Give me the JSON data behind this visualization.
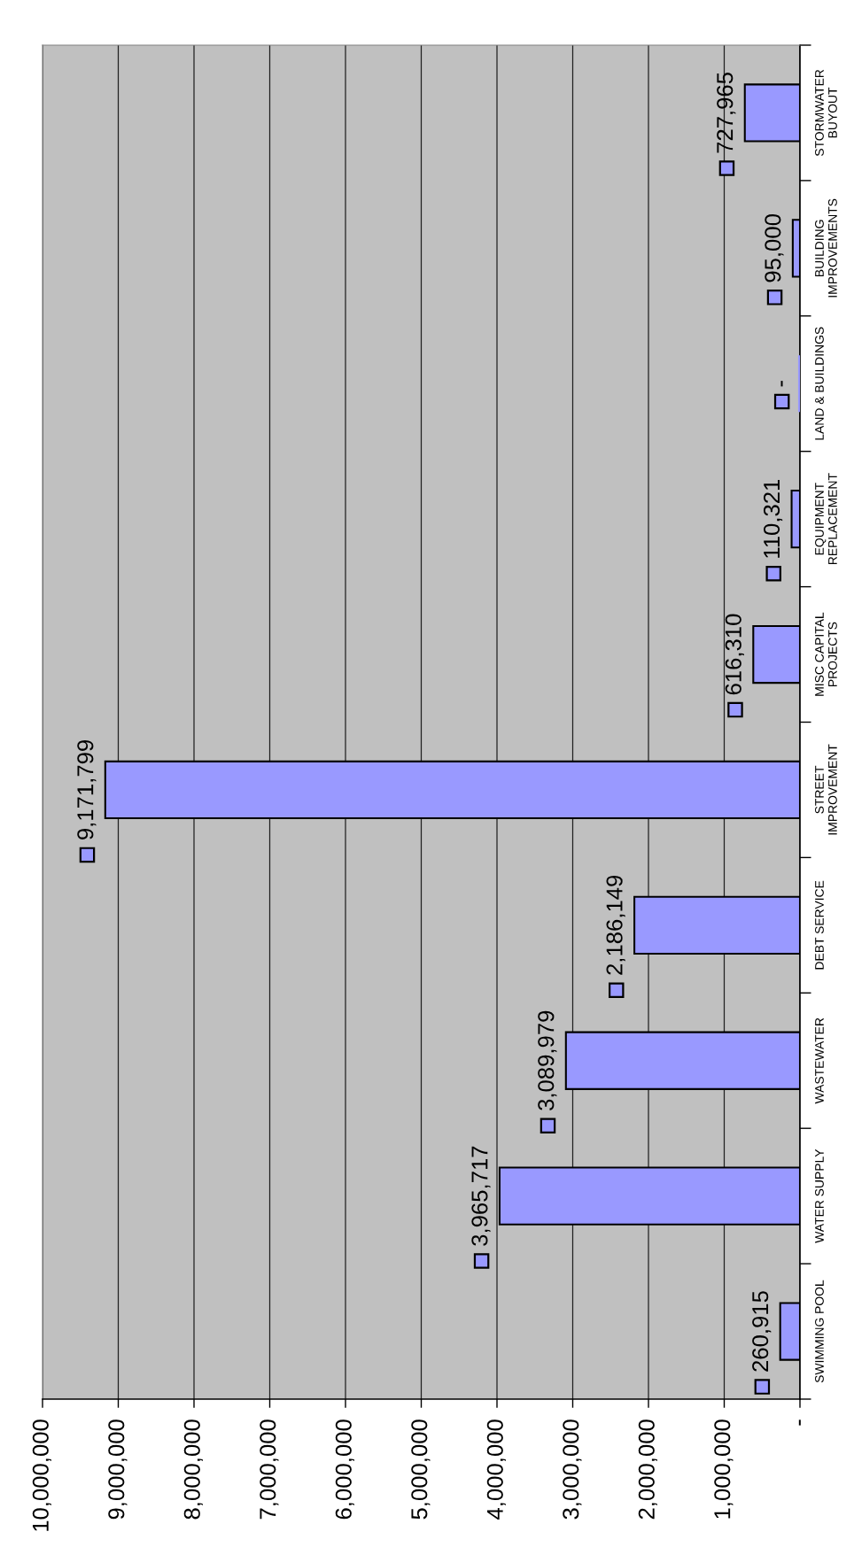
{
  "chart_data": {
    "type": "bar",
    "orientation": "horizontal",
    "categories": [
      "STORMWATER\nBUYOUT",
      "BUILDING\nIMPROVEMENTS",
      "LAND & BUILDINGS",
      "EQUIPMENT\nREPLACEMENT",
      "MISC CAPITAL\nPROJECTS",
      "STREET\nIMPROVEMENT",
      "DEBT SERVICE",
      "WASTEWATER",
      "WATER SUPPLY",
      "SWIMMING POOL"
    ],
    "values": [
      727965,
      95000,
      0,
      110321,
      616310,
      9171799,
      2186149,
      3089979,
      3965717,
      260915
    ],
    "value_labels": [
      "727,965",
      "95,000",
      "-",
      "110,321",
      "616,310",
      "9,171,799",
      "2,186,149",
      "3,089,979",
      "3,965,717",
      "260,915"
    ],
    "color": "#9999ff",
    "xlim": [
      10000000,
      0
    ],
    "xticks": [
      {
        "value": 10000000,
        "label": "10,000,000"
      },
      {
        "value": 9000000,
        "label": "9,000,000"
      },
      {
        "value": 8000000,
        "label": "8,000,000"
      },
      {
        "value": 7000000,
        "label": "7,000,000"
      },
      {
        "value": 6000000,
        "label": "6,000,000"
      },
      {
        "value": 5000000,
        "label": "5,000,000"
      },
      {
        "value": 4000000,
        "label": "4,000,000"
      },
      {
        "value": 3000000,
        "label": "3,000,000"
      },
      {
        "value": 2000000,
        "label": "2,000,000"
      },
      {
        "value": 1000000,
        "label": "1,000,000"
      },
      {
        "value": 0,
        "label": "-"
      }
    ],
    "grid": "x"
  }
}
